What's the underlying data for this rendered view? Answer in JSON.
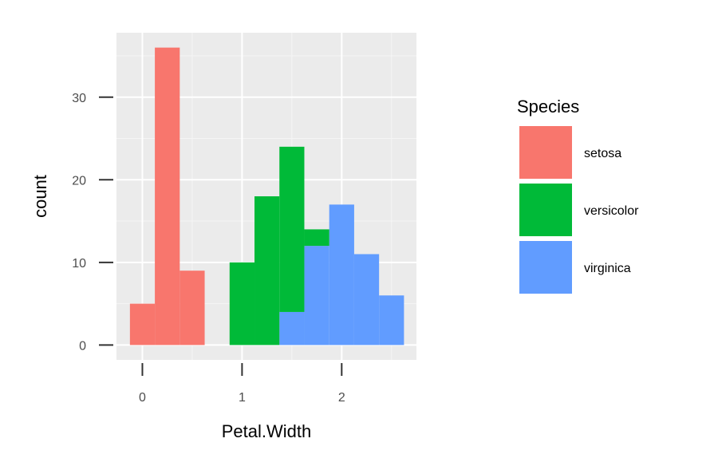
{
  "chart_data": {
    "type": "bar",
    "subtype": "stacked-histogram",
    "title": "",
    "xlabel": "Petal.Width",
    "ylabel": "count",
    "xlim": [
      -0.26,
      2.75
    ],
    "ylim": [
      -1.8,
      37.8
    ],
    "x_ticks": [
      0,
      1,
      2
    ],
    "x_tick_labels": [
      "0",
      "1",
      "2"
    ],
    "y_ticks": [
      0,
      10,
      20,
      30
    ],
    "y_tick_labels": [
      "0",
      "10",
      "20",
      "30"
    ],
    "x_minor_gridlines": [
      0.5,
      1.5,
      2.5
    ],
    "y_minor_gridlines": [
      5,
      15,
      25,
      35
    ],
    "grid": true,
    "panel_background": "#ebebeb",
    "legend": {
      "title": "Species",
      "position": "right"
    },
    "series": [
      {
        "name": "setosa",
        "color": "#f8766d",
        "bins": [
          {
            "x0": -0.125,
            "x1": 0.125,
            "count": 5
          },
          {
            "x0": 0.125,
            "x1": 0.375,
            "count": 36
          },
          {
            "x0": 0.375,
            "x1": 0.625,
            "count": 9
          }
        ]
      },
      {
        "name": "versicolor",
        "color": "#00ba38",
        "bins": [
          {
            "x0": 0.875,
            "x1": 1.125,
            "count": 10
          },
          {
            "x0": 1.125,
            "x1": 1.375,
            "count": 18
          },
          {
            "x0": 1.375,
            "x1": 1.625,
            "count": 20
          },
          {
            "x0": 1.625,
            "x1": 1.875,
            "count": 2
          }
        ]
      },
      {
        "name": "virginica",
        "color": "#619cff",
        "bins": [
          {
            "x0": 1.375,
            "x1": 1.625,
            "count": 4
          },
          {
            "x0": 1.625,
            "x1": 1.875,
            "count": 12
          },
          {
            "x0": 1.875,
            "x1": 2.125,
            "count": 17
          },
          {
            "x0": 2.125,
            "x1": 2.375,
            "count": 11
          },
          {
            "x0": 2.375,
            "x1": 2.625,
            "count": 6
          }
        ]
      }
    ]
  }
}
